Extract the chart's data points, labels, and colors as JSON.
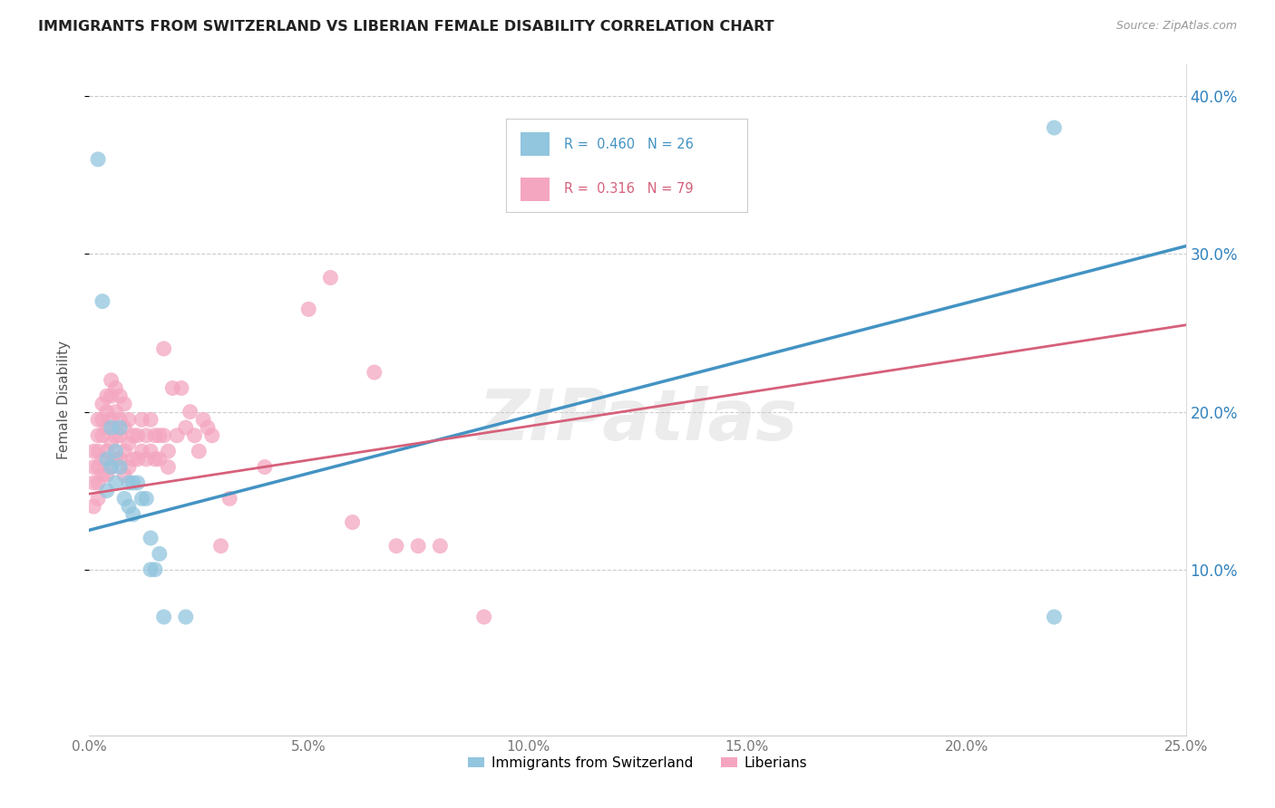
{
  "title": "IMMIGRANTS FROM SWITZERLAND VS LIBERIAN FEMALE DISABILITY CORRELATION CHART",
  "source": "Source: ZipAtlas.com",
  "ylabel": "Female Disability",
  "watermark": "ZIPatlas",
  "legend_swiss_R": "0.460",
  "legend_swiss_N": "26",
  "legend_lib_R": "0.316",
  "legend_lib_N": "79",
  "swiss_color": "#92c5de",
  "liberian_color": "#f4a6c0",
  "swiss_line_color": "#4393c3",
  "liberian_line_color": "#d6607a",
  "xlim": [
    0.0,
    0.25
  ],
  "ylim": [
    -0.005,
    0.42
  ],
  "xticks": [
    0.0,
    0.05,
    0.1,
    0.15,
    0.2,
    0.25
  ],
  "yticks": [
    0.1,
    0.2,
    0.3,
    0.4
  ],
  "swiss_line_x": [
    0.0,
    0.25
  ],
  "swiss_line_y": [
    0.125,
    0.305
  ],
  "liberian_line_x": [
    0.0,
    0.25
  ],
  "liberian_line_y": [
    0.148,
    0.255
  ],
  "swiss_scatter_x": [
    0.002,
    0.003,
    0.004,
    0.004,
    0.005,
    0.005,
    0.006,
    0.006,
    0.007,
    0.007,
    0.008,
    0.009,
    0.009,
    0.01,
    0.01,
    0.011,
    0.012,
    0.013,
    0.014,
    0.014,
    0.015,
    0.016,
    0.017,
    0.022,
    0.22,
    0.22
  ],
  "swiss_scatter_y": [
    0.36,
    0.27,
    0.17,
    0.15,
    0.19,
    0.165,
    0.175,
    0.155,
    0.19,
    0.165,
    0.145,
    0.155,
    0.14,
    0.155,
    0.135,
    0.155,
    0.145,
    0.145,
    0.12,
    0.1,
    0.1,
    0.11,
    0.07,
    0.07,
    0.38,
    0.07
  ],
  "liberian_scatter_x": [
    0.001,
    0.001,
    0.001,
    0.001,
    0.002,
    0.002,
    0.002,
    0.002,
    0.002,
    0.002,
    0.003,
    0.003,
    0.003,
    0.003,
    0.003,
    0.004,
    0.004,
    0.004,
    0.004,
    0.004,
    0.005,
    0.005,
    0.005,
    0.005,
    0.005,
    0.006,
    0.006,
    0.006,
    0.006,
    0.007,
    0.007,
    0.007,
    0.007,
    0.008,
    0.008,
    0.008,
    0.008,
    0.009,
    0.009,
    0.009,
    0.01,
    0.01,
    0.011,
    0.011,
    0.012,
    0.012,
    0.013,
    0.013,
    0.014,
    0.014,
    0.015,
    0.015,
    0.016,
    0.016,
    0.017,
    0.017,
    0.018,
    0.018,
    0.019,
    0.02,
    0.021,
    0.022,
    0.023,
    0.024,
    0.025,
    0.026,
    0.027,
    0.028,
    0.03,
    0.032,
    0.04,
    0.05,
    0.055,
    0.06,
    0.065,
    0.07,
    0.075,
    0.08,
    0.09
  ],
  "liberian_scatter_y": [
    0.175,
    0.165,
    0.155,
    0.14,
    0.195,
    0.185,
    0.175,
    0.165,
    0.155,
    0.145,
    0.205,
    0.195,
    0.185,
    0.17,
    0.16,
    0.21,
    0.2,
    0.19,
    0.175,
    0.16,
    0.22,
    0.21,
    0.195,
    0.18,
    0.165,
    0.215,
    0.2,
    0.185,
    0.17,
    0.21,
    0.195,
    0.185,
    0.17,
    0.205,
    0.19,
    0.175,
    0.16,
    0.195,
    0.18,
    0.165,
    0.185,
    0.17,
    0.185,
    0.17,
    0.195,
    0.175,
    0.185,
    0.17,
    0.195,
    0.175,
    0.185,
    0.17,
    0.185,
    0.17,
    0.24,
    0.185,
    0.175,
    0.165,
    0.215,
    0.185,
    0.215,
    0.19,
    0.2,
    0.185,
    0.175,
    0.195,
    0.19,
    0.185,
    0.115,
    0.145,
    0.165,
    0.265,
    0.285,
    0.13,
    0.225,
    0.115,
    0.115,
    0.115,
    0.07
  ]
}
